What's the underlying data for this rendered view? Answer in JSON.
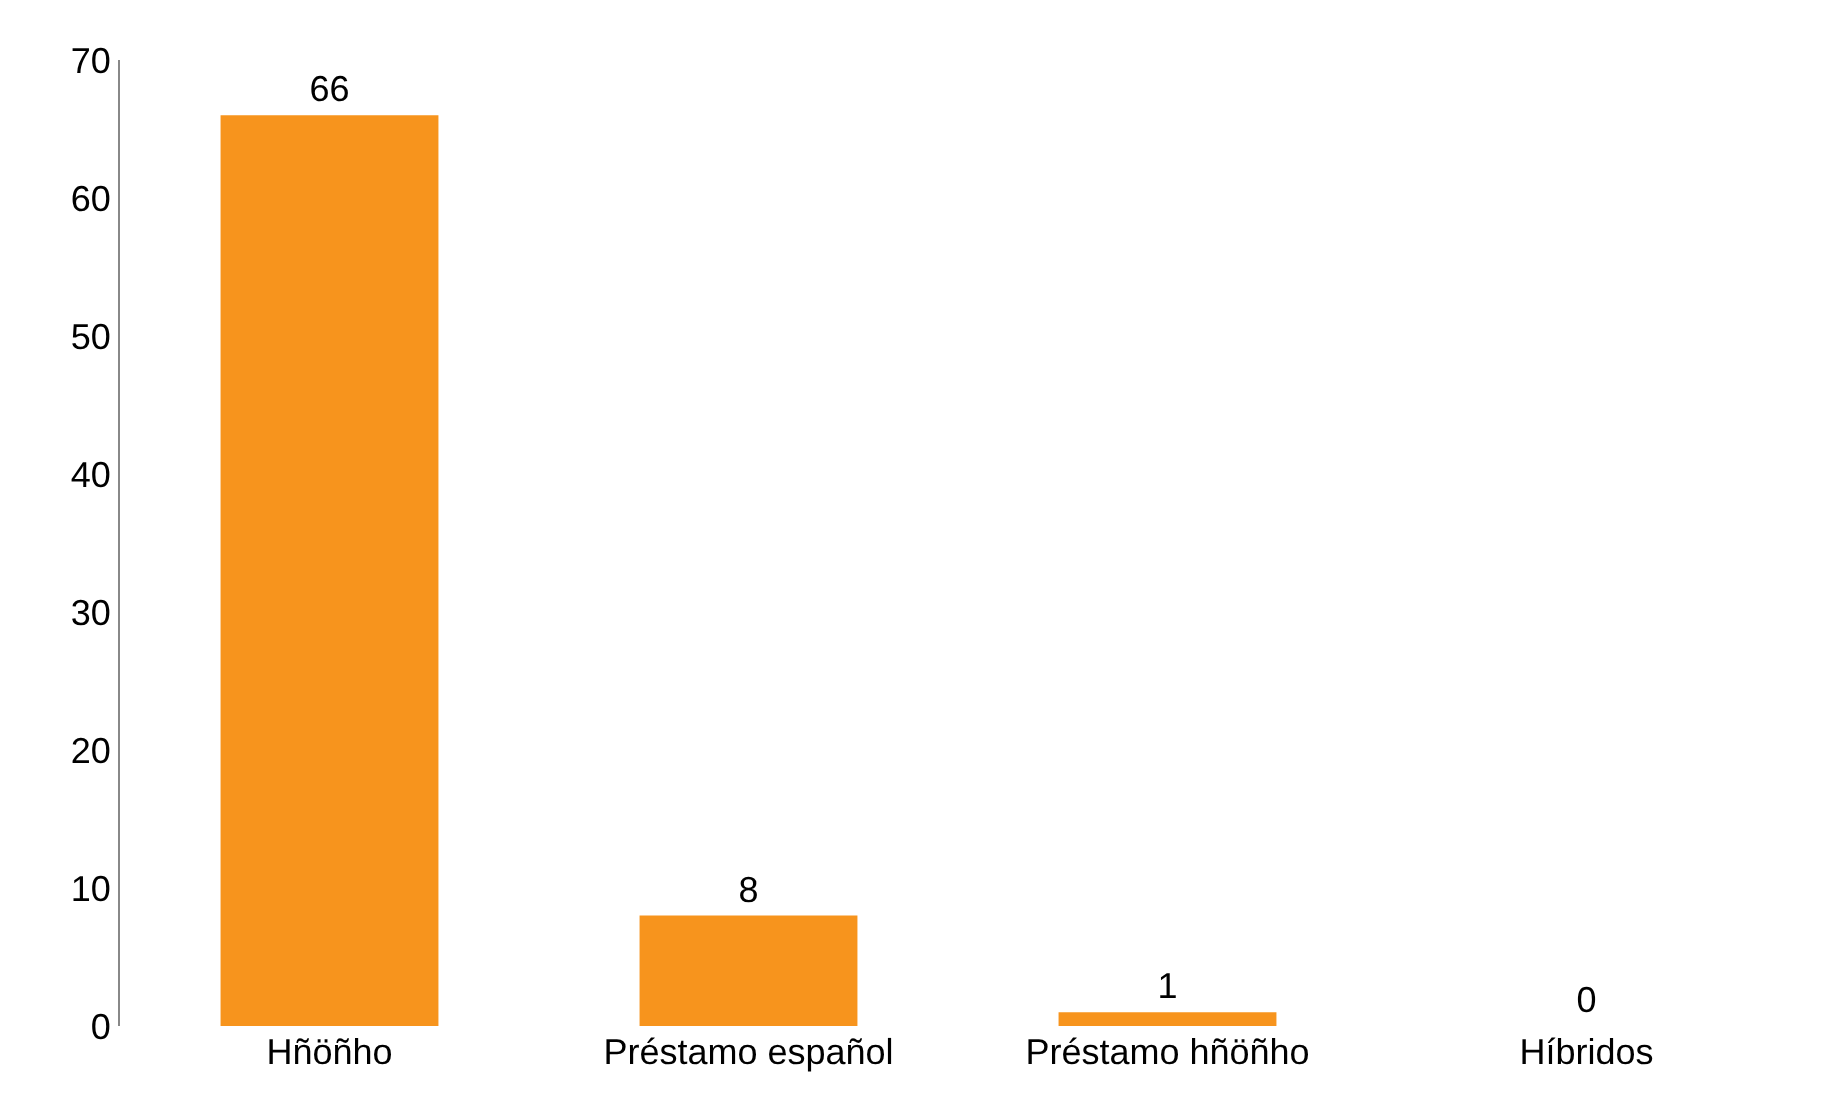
{
  "chart_data": {
    "type": "bar",
    "categories": [
      "Hñöñho",
      "Préstamo español",
      "Préstamo hñöñho",
      "Híbridos"
    ],
    "values": [
      66,
      8,
      1,
      0
    ],
    "color": "#f7941d",
    "ylim": [
      0,
      70
    ],
    "yticks": [
      0,
      10,
      20,
      30,
      40,
      50,
      60,
      70
    ],
    "data_labels": true
  }
}
